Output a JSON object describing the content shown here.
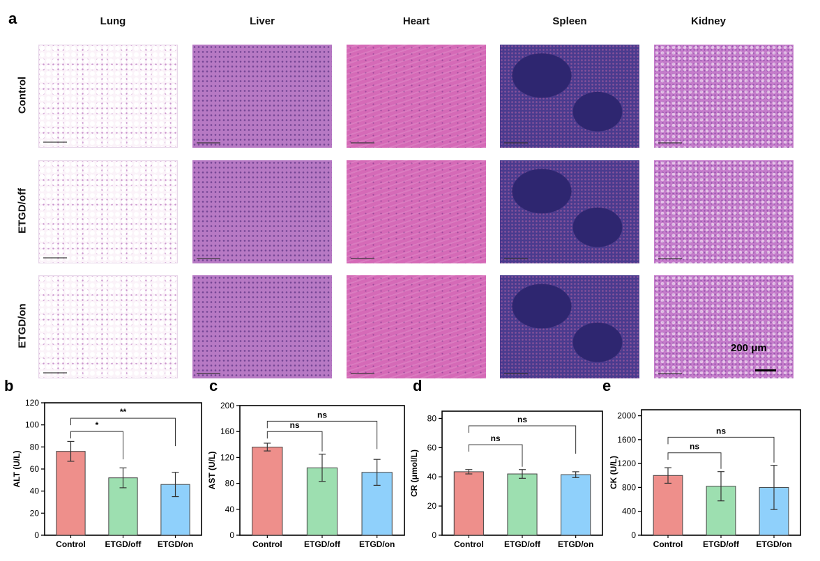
{
  "histology": {
    "panel_label": "a",
    "columns": [
      "Lung",
      "Liver",
      "Heart",
      "Spleen",
      "Kidney"
    ],
    "rows": [
      "Control",
      "ETGD/off",
      "ETGD/on"
    ],
    "scale_bar_label": "200 μm"
  },
  "colors": {
    "Control": "#ee8f8b",
    "ETGD/off": "#9ddfb0",
    "ETGD/on": "#8fd0fb",
    "edge": "#444444"
  },
  "chart_data": [
    {
      "panel": "b",
      "type": "bar",
      "ylabel": "ALT (U/L)",
      "categories": [
        "Control",
        "ETGD/off",
        "ETGD/on"
      ],
      "values": [
        76,
        52,
        46
      ],
      "errors": [
        9,
        9,
        11
      ],
      "ylim": [
        0,
        120
      ],
      "yticks": [
        "0",
        "20",
        "40",
        "60",
        "80",
        "100",
        "120"
      ],
      "annotations": [
        {
          "from": 0,
          "to": 1,
          "text": "*",
          "y": 94
        },
        {
          "from": 0,
          "to": 2,
          "text": "**",
          "y": 106
        }
      ]
    },
    {
      "panel": "c",
      "type": "bar",
      "ylabel": "AST (U/L)",
      "categories": [
        "Control",
        "ETGD/off",
        "ETGD/on"
      ],
      "values": [
        136,
        104,
        97
      ],
      "errors": [
        6,
        21,
        20
      ],
      "ylim": [
        0,
        200
      ],
      "yticks": [
        "0",
        "40",
        "80",
        "120",
        "160",
        "200"
      ],
      "annotations": [
        {
          "from": 0,
          "to": 1,
          "text": "ns",
          "y": 160
        },
        {
          "from": 0,
          "to": 2,
          "text": "ns",
          "y": 176
        }
      ]
    },
    {
      "panel": "d",
      "type": "bar",
      "ylabel": "CR (μmol/L)",
      "categories": [
        "Control",
        "ETGD/off",
        "ETGD/on"
      ],
      "values": [
        43.5,
        42,
        41.5
      ],
      "errors": [
        1.5,
        3,
        2
      ],
      "ylim": [
        0,
        85
      ],
      "yticks": [
        "0",
        "20",
        "40",
        "60",
        "80"
      ],
      "annotations": [
        {
          "from": 0,
          "to": 1,
          "text": "ns",
          "y": 62
        },
        {
          "from": 0,
          "to": 2,
          "text": "ns",
          "y": 75
        }
      ]
    },
    {
      "panel": "e",
      "type": "bar",
      "ylabel": "CK (U/L)",
      "categories": [
        "Control",
        "ETGD/off",
        "ETGD/on"
      ],
      "values": [
        1000,
        820,
        800
      ],
      "errors": [
        130,
        245,
        370
      ],
      "ylim": [
        0,
        2100
      ],
      "yticks": [
        "0",
        "400",
        "800",
        "1200",
        "1600",
        "2000"
      ],
      "annotations": [
        {
          "from": 0,
          "to": 1,
          "text": "ns",
          "y": 1380
        },
        {
          "from": 0,
          "to": 2,
          "text": "ns",
          "y": 1640
        }
      ]
    }
  ]
}
